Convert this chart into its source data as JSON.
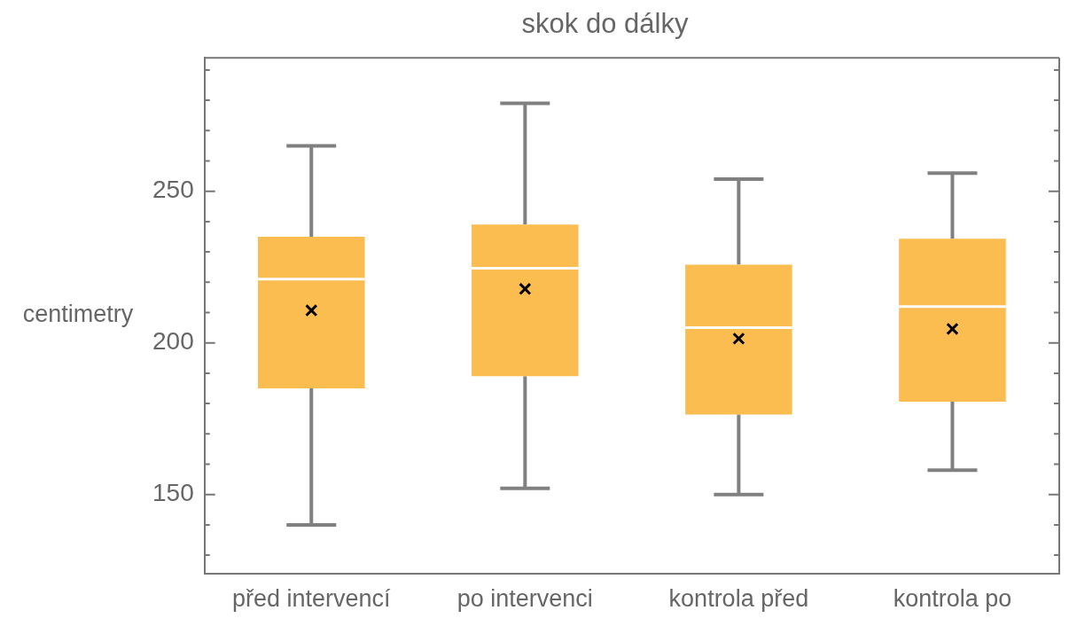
{
  "chart_data": {
    "type": "box",
    "title": "skok do dálky",
    "ylabel": "centimetry",
    "categories": [
      "před intervencí",
      "po intervenci",
      "kontrola před",
      "kontrola po"
    ],
    "color": "#fbbc50",
    "boxes": [
      {
        "low": 140,
        "q1": 185,
        "median": 221,
        "q3": 235,
        "high": 265,
        "mean": 210.7
      },
      {
        "low": 152,
        "q1": 189,
        "median": 224.6,
        "q3": 239,
        "high": 279,
        "mean": 217.8
      },
      {
        "low": 150,
        "q1": 176.4,
        "median": 205,
        "q3": 225.8,
        "high": 254,
        "mean": 201.4
      },
      {
        "low": 158,
        "q1": 180.6,
        "median": 212,
        "q3": 234.3,
        "high": 256,
        "mean": 204.6
      }
    ],
    "ylim": [
      124,
      294
    ],
    "yticks": [
      {
        "value": 130,
        "label": null
      },
      {
        "value": 140,
        "label": null
      },
      150,
      {
        "value": 160,
        "label": null
      },
      {
        "value": 170,
        "label": null
      },
      {
        "value": 180,
        "label": null
      },
      {
        "value": 190,
        "label": null
      },
      200,
      {
        "value": 210,
        "label": null
      },
      {
        "value": 220,
        "label": null
      },
      {
        "value": 230,
        "label": null
      },
      {
        "value": 240,
        "label": null
      },
      250,
      {
        "value": 260,
        "label": null
      },
      {
        "value": 270,
        "label": null
      },
      {
        "value": 280,
        "label": null
      },
      {
        "value": 290,
        "label": null
      }
    ],
    "grid": false,
    "legend": false
  }
}
